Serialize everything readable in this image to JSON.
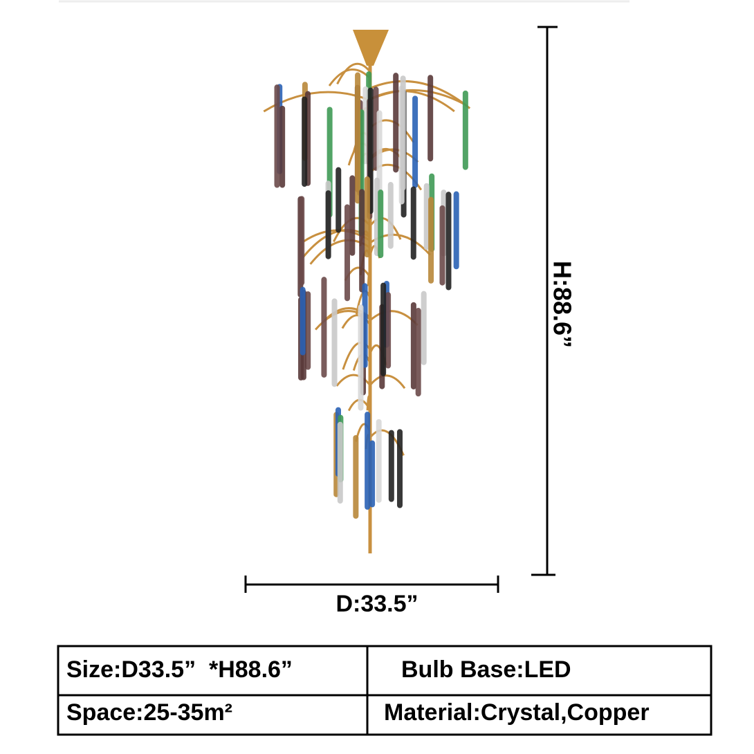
{
  "dimensions": {
    "height": "H:88.6”",
    "diameter": "D:33.5”"
  },
  "table": {
    "rows": [
      [
        "Size:D33.5”  *H88.6”",
        "Bulb Base:LED"
      ],
      [
        "Space:25-35m²",
        "Material:Crystal,Copper"
      ]
    ]
  }
}
